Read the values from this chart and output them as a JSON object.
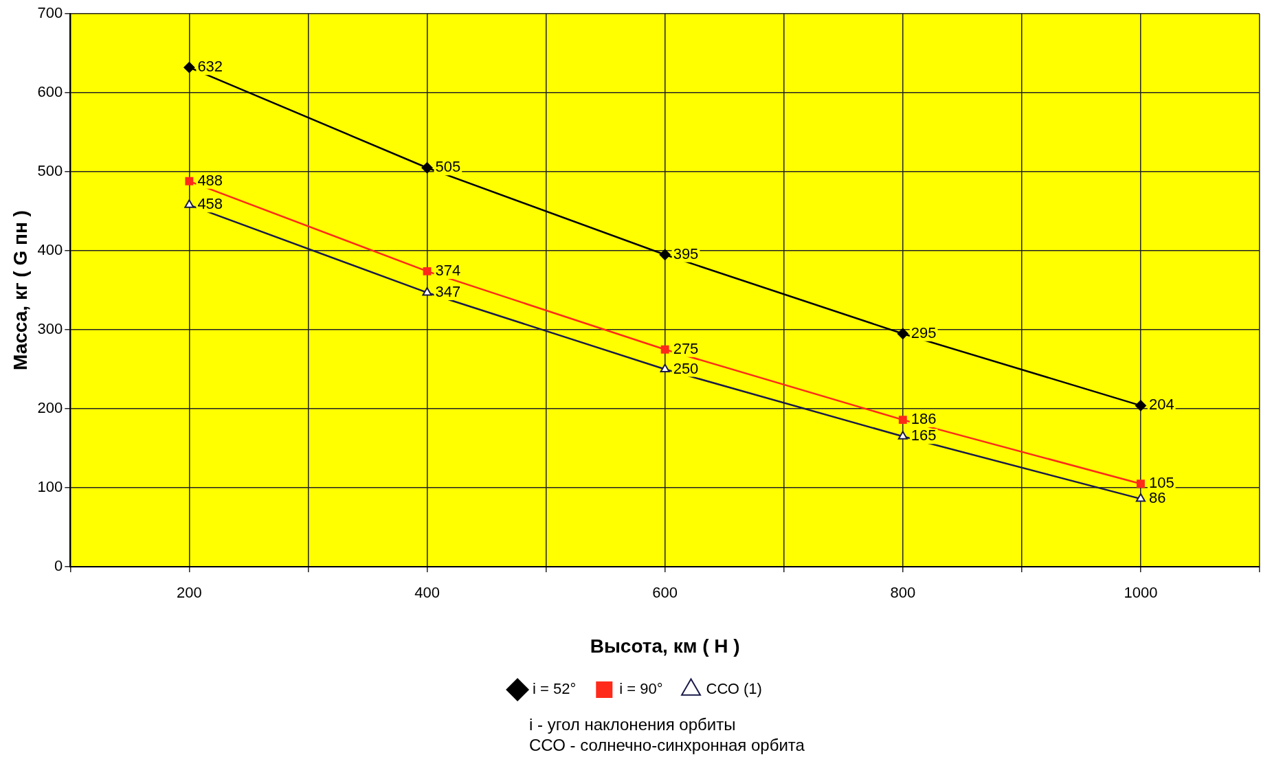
{
  "chart_data": {
    "type": "line",
    "xlabel": "Высота, км ( H )",
    "ylabel": "Масса, кг ( G пн )",
    "x": [
      200,
      400,
      600,
      800,
      1000
    ],
    "series": [
      {
        "name": "i = 52°",
        "color": "#000000",
        "marker": "diamond",
        "values": [
          632,
          505,
          395,
          295,
          204
        ]
      },
      {
        "name": "i = 90°",
        "color": "#ff2a1a",
        "marker": "square",
        "values": [
          488,
          374,
          275,
          186,
          105
        ]
      },
      {
        "name": "ССО (1)",
        "color": "#1a1a4a",
        "marker": "triangle",
        "values": [
          458,
          347,
          250,
          165,
          86
        ]
      }
    ],
    "xlim": [
      100,
      1100
    ],
    "xticks": [
      {
        "value": 100,
        "label": null
      },
      200,
      {
        "value": 300,
        "label": null
      },
      400,
      {
        "value": 500,
        "label": null
      },
      600,
      {
        "value": 700,
        "label": null
      },
      800,
      {
        "value": 900,
        "label": null
      },
      1000,
      {
        "value": 1100,
        "label": null
      }
    ],
    "ylim": [
      0,
      700
    ],
    "yticks": [
      0,
      100,
      200,
      300,
      400,
      500,
      600,
      700
    ],
    "grid": true,
    "legend": "bottom",
    "data_labels": true,
    "annotations": [
      "i - угол наклонения орбиты",
      "ССО - солнечно-синхронная орбита"
    ]
  }
}
